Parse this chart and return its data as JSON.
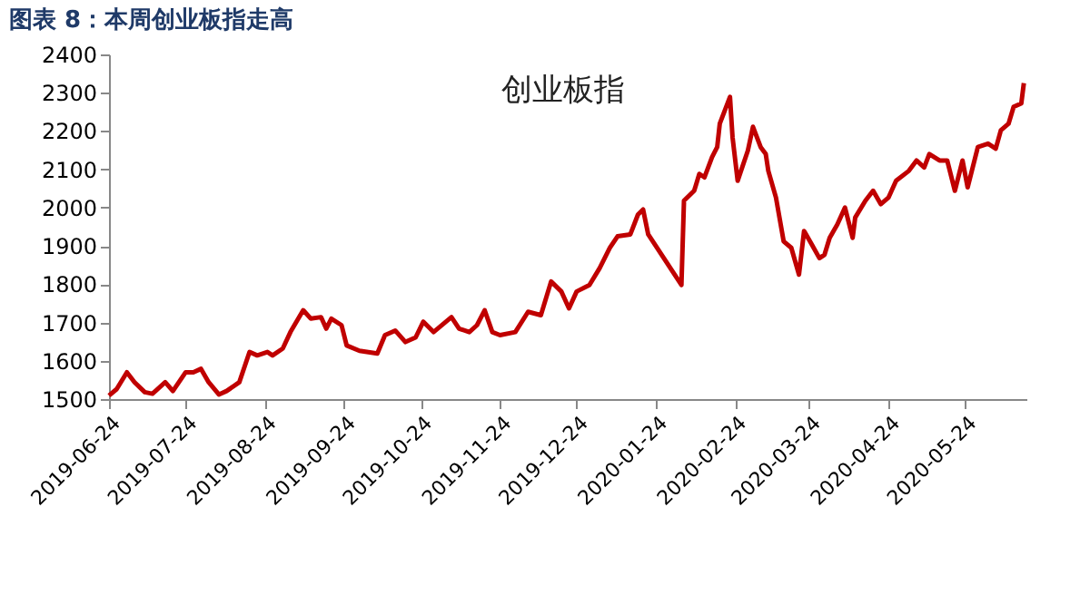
{
  "chart_data": {
    "type": "line",
    "title": "图表 8：本周创业板指走高",
    "annotations": [
      "创业板指"
    ],
    "x": [
      "2019-06-24",
      "2019-06-27",
      "2019-07-01",
      "2019-07-04",
      "2019-07-08",
      "2019-07-11",
      "2019-07-16",
      "2019-07-19",
      "2019-07-24",
      "2019-07-27",
      "2019-07-30",
      "2019-08-02",
      "2019-08-06",
      "2019-08-09",
      "2019-08-14",
      "2019-08-18",
      "2019-08-21",
      "2019-08-25",
      "2019-08-27",
      "2019-08-31",
      "2019-09-03",
      "2019-09-08",
      "2019-09-11",
      "2019-09-15",
      "2019-09-17",
      "2019-09-19",
      "2019-09-23",
      "2019-09-25",
      "2019-09-30",
      "2019-10-07",
      "2019-10-10",
      "2019-10-14",
      "2019-10-18",
      "2019-10-22",
      "2019-10-25",
      "2019-10-29",
      "2019-11-05",
      "2019-11-08",
      "2019-11-12",
      "2019-11-15",
      "2019-11-18",
      "2019-11-21",
      "2019-11-24",
      "2019-11-30",
      "2019-12-05",
      "2019-12-10",
      "2019-12-14",
      "2019-12-18",
      "2019-12-21",
      "2019-12-24",
      "2019-12-29",
      "2020-01-02",
      "2020-01-06",
      "2020-01-09",
      "2020-01-14",
      "2020-01-17",
      "2020-01-19",
      "2020-01-21",
      "2020-02-03",
      "2020-02-04",
      "2020-02-08",
      "2020-02-10",
      "2020-02-12",
      "2020-02-15",
      "2020-02-17",
      "2020-02-18",
      "2020-02-22",
      "2020-02-23",
      "2020-02-25",
      "2020-02-29",
      "2020-03-02",
      "2020-03-05",
      "2020-03-07",
      "2020-03-08",
      "2020-03-11",
      "2020-03-14",
      "2020-03-17",
      "2020-03-20",
      "2020-03-22",
      "2020-03-25",
      "2020-03-28",
      "2020-03-30",
      "2020-04-01",
      "2020-04-04",
      "2020-04-07",
      "2020-04-10",
      "2020-04-11",
      "2020-04-15",
      "2020-04-18",
      "2020-04-21",
      "2020-04-24",
      "2020-04-27",
      "2020-05-02",
      "2020-05-05",
      "2020-05-08",
      "2020-05-10",
      "2020-05-14",
      "2020-05-17",
      "2020-05-20",
      "2020-05-23",
      "2020-05-25",
      "2020-05-29",
      "2020-06-02",
      "2020-06-05",
      "2020-06-07",
      "2020-06-10",
      "2020-06-12",
      "2020-06-15",
      "2020-06-16"
    ],
    "series": [
      {
        "color": "#c00000",
        "values": [
          1509,
          1526,
          1570,
          1544,
          1518,
          1514,
          1544,
          1521,
          1570,
          1570,
          1579,
          1544,
          1512,
          1521,
          1544,
          1623,
          1614,
          1623,
          1614,
          1632,
          1675,
          1732,
          1710,
          1714,
          1684,
          1710,
          1693,
          1640,
          1626,
          1619,
          1667,
          1679,
          1649,
          1661,
          1702,
          1675,
          1714,
          1684,
          1675,
          1693,
          1732,
          1675,
          1667,
          1675,
          1728,
          1719,
          1807,
          1781,
          1737,
          1781,
          1798,
          1842,
          1895,
          1925,
          1930,
          1982,
          1995,
          1930,
          1798,
          2018,
          2044,
          2088,
          2079,
          2132,
          2158,
          2219,
          2289,
          2184,
          2070,
          2149,
          2211,
          2158,
          2140,
          2096,
          2026,
          1912,
          1895,
          1825,
          1939,
          1904,
          1868,
          1877,
          1921,
          1956,
          2000,
          1921,
          1974,
          2018,
          2044,
          2009,
          2026,
          2070,
          2096,
          2123,
          2105,
          2140,
          2123,
          2123,
          2044,
          2123,
          2053,
          2158,
          2167,
          2154,
          2202,
          2219,
          2263,
          2272,
          2325
        ]
      }
    ],
    "xlim": [
      "2019-06-24",
      "2020-06-17"
    ],
    "xticks": [
      "2019-06-24",
      "2019-07-24",
      "2019-08-24",
      "2019-09-24",
      "2019-10-24",
      "2019-11-24",
      "2019-12-24",
      "2020-01-24",
      "2020-02-24",
      "2020-03-24",
      "2020-04-24",
      "2020-05-24"
    ],
    "ylim": [
      1500,
      2400
    ],
    "yticks": [
      1500,
      1600,
      1700,
      1800,
      1900,
      2000,
      2100,
      2200,
      2300,
      2400
    ],
    "grid": false,
    "marker": "none",
    "line_style": "solid"
  }
}
